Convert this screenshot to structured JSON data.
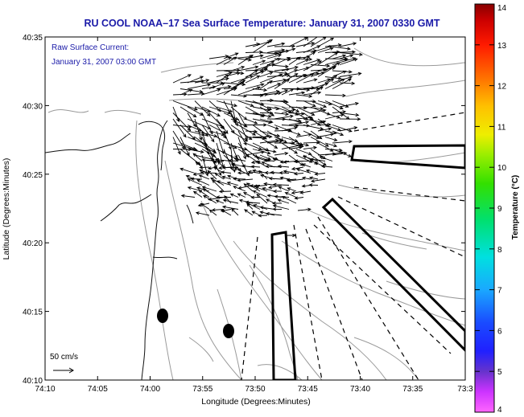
{
  "title": "RU COOL  NOAA–17  Sea Surface Temperature:  January 31, 2007 0330 GMT",
  "annotation": {
    "line1": "Raw Surface Current:",
    "line2": "January 31, 2007 03:00 GMT"
  },
  "scale": {
    "label": "50 cm/s"
  },
  "axes": {
    "xlabel": "Longitude (Degrees:Minutes)",
    "ylabel": "Latitude (Degrees:Minutes)",
    "xticks": [
      "74:10",
      "74:05",
      "74:00",
      "73:55",
      "73:50",
      "73:45",
      "73:40",
      "73:35",
      "73:3"
    ],
    "yticks": [
      "40:35",
      "40:30",
      "40:25",
      "40:20",
      "40:15",
      "40:10"
    ]
  },
  "colorbar": {
    "label": "Temperature (°C)",
    "ticks": [
      "14",
      "13",
      "12",
      "11",
      "10",
      "9",
      "8",
      "7",
      "6",
      "5",
      "4"
    ],
    "range": [
      4,
      14
    ]
  },
  "colors": {
    "title": "#1a1aa8",
    "coast": "#111111",
    "contour": "#9a9a9a"
  }
}
